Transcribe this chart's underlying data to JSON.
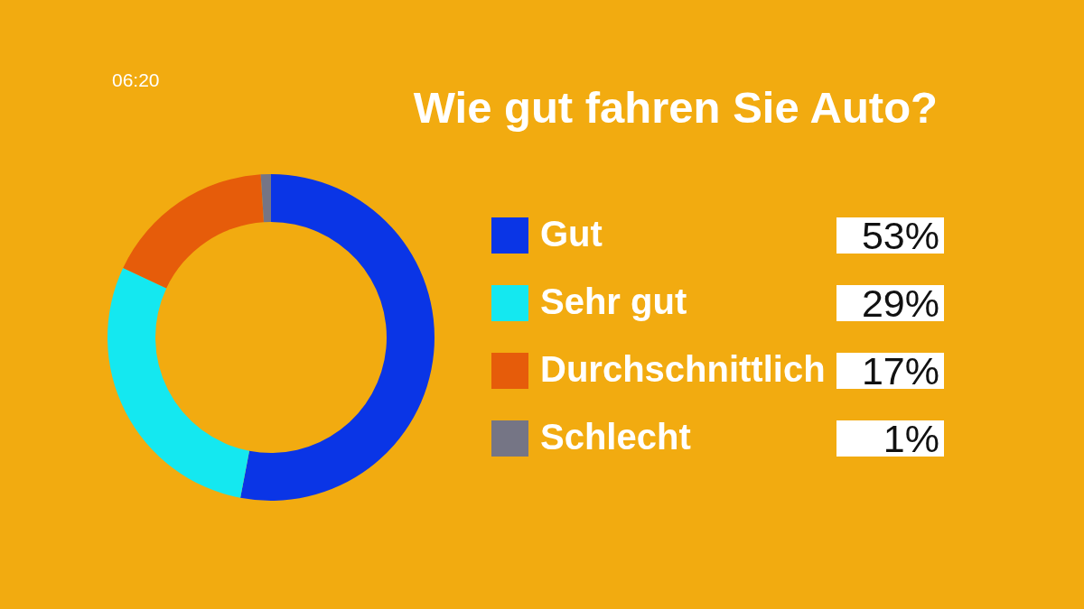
{
  "chart_data": {
    "type": "donut",
    "title": "Wie gut fahren Sie Auto?",
    "categories": [
      "Gut",
      "Sehr gut",
      "Durchschnittlich",
      "Schlecht"
    ],
    "values": [
      53,
      29,
      17,
      1
    ],
    "colors": [
      "#0a35e6",
      "#14e8f0",
      "#e65c0a",
      "#757585"
    ],
    "value_labels": [
      "53%",
      "29%",
      "17%",
      "1%"
    ],
    "legend": "right",
    "annotations": [
      "06:20"
    ]
  }
}
